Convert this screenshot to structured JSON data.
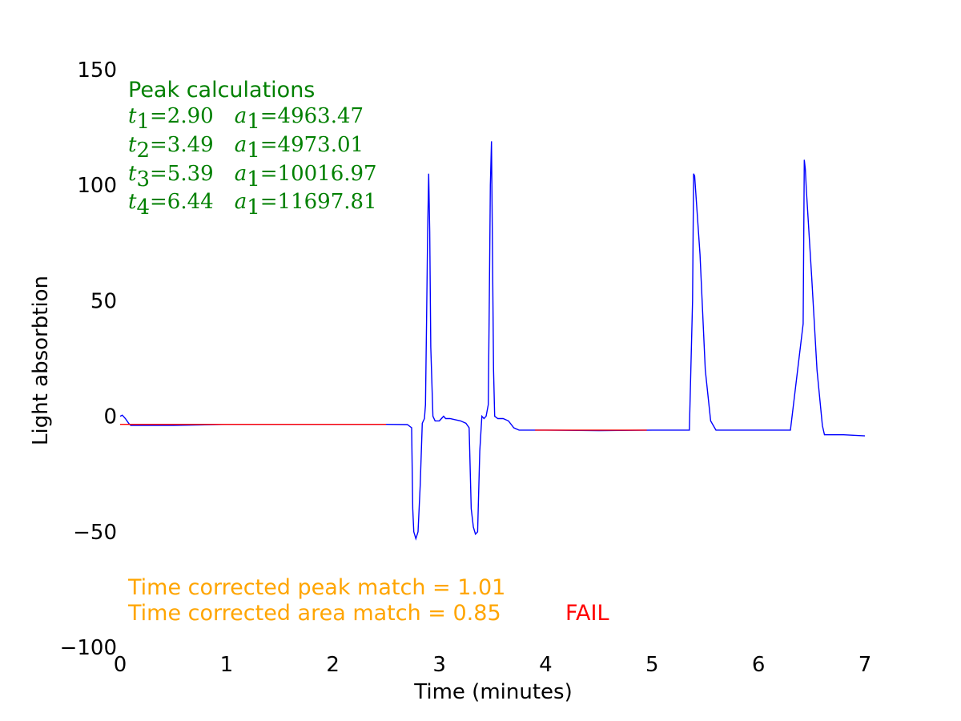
{
  "chart_data": {
    "type": "line",
    "xlabel": "Time (minutes)",
    "ylabel": "Light absorbtion",
    "xlim": [
      0,
      7
    ],
    "ylim": [
      -100,
      150
    ],
    "x_ticks": [
      "0",
      "1",
      "2",
      "3",
      "4",
      "5",
      "6",
      "7"
    ],
    "y_ticks": [
      "−100",
      "−50",
      "0",
      "50",
      "100",
      "150"
    ],
    "grid": false,
    "colors": {
      "trace": "#0000ff",
      "baseline": "#ff0000",
      "annotation": "#008000",
      "match": "#ffa500",
      "fail": "#ff0000"
    },
    "series": [
      {
        "color": "#0000ff",
        "x": [
          0.0,
          0.02,
          0.05,
          0.08,
          0.1,
          0.2,
          0.5,
          1.0,
          1.5,
          2.0,
          2.5,
          2.7,
          2.74,
          2.75,
          2.76,
          2.78,
          2.8,
          2.82,
          2.84,
          2.86,
          2.87,
          2.88,
          2.89,
          2.9,
          2.91,
          2.92,
          2.94,
          2.96,
          3.0,
          3.04,
          3.06,
          3.1,
          3.2,
          3.25,
          3.28,
          3.3,
          3.32,
          3.34,
          3.36,
          3.38,
          3.4,
          3.42,
          3.44,
          3.46,
          3.47,
          3.48,
          3.49,
          3.5,
          3.51,
          3.52,
          3.55,
          3.6,
          3.65,
          3.7,
          3.75,
          3.8,
          4.0,
          4.5,
          5.0,
          5.35,
          5.38,
          5.39,
          5.4,
          5.45,
          5.5,
          5.55,
          5.6,
          5.7,
          6.0,
          6.3,
          6.42,
          6.43,
          6.44,
          6.45,
          6.5,
          6.55,
          6.6,
          6.62,
          6.7,
          6.8,
          7.0
        ],
        "y": [
          0,
          0.5,
          -1,
          -3,
          -4,
          -4,
          -4,
          -3.5,
          -3.5,
          -3.5,
          -3.5,
          -3.6,
          -5,
          -40,
          -50,
          -53,
          -50,
          -30,
          -3,
          -1,
          5,
          40,
          80,
          105,
          80,
          30,
          0,
          -2,
          -2,
          0,
          -1,
          -1,
          -2,
          -3,
          -5,
          -40,
          -48,
          -51,
          -50,
          -15,
          0,
          -1,
          0,
          5,
          50,
          100,
          119,
          70,
          20,
          0,
          -1,
          -1,
          -2,
          -5,
          -6,
          -6,
          -6,
          -6.2,
          -6,
          -6,
          50,
          105,
          104,
          70,
          20,
          -2,
          -6,
          -6,
          -6,
          -6,
          40,
          111,
          107,
          98,
          60,
          20,
          -4,
          -8,
          -8,
          -8,
          -8.5
        ]
      },
      {
        "color": "#ff0000",
        "x": [
          0.0,
          2.5
        ],
        "y": [
          -3.5,
          -3.5
        ]
      },
      {
        "color": "#ff0000",
        "x": [
          3.9,
          4.95
        ],
        "y": [
          -6,
          -6
        ]
      }
    ],
    "annotations": {
      "title": "Peak calculations",
      "peaks": [
        {
          "t_label": "t",
          "t_sub": "1",
          "t_value": "2.90",
          "a_label": "a",
          "a_sub": "1",
          "a_value": "4963.47"
        },
        {
          "t_label": "t",
          "t_sub": "2",
          "t_value": "3.49",
          "a_label": "a",
          "a_sub": "1",
          "a_value": "4973.01"
        },
        {
          "t_label": "t",
          "t_sub": "3",
          "t_value": "5.39",
          "a_label": "a",
          "a_sub": "1",
          "a_value": "10016.97"
        },
        {
          "t_label": "t",
          "t_sub": "4",
          "t_value": "6.44",
          "a_label": "a",
          "a_sub": "1",
          "a_value": "11697.81"
        }
      ],
      "peak_match": "Time corrected peak match = 1.01",
      "area_match": "Time corrected area match = 0.85",
      "status": "FAIL"
    }
  }
}
